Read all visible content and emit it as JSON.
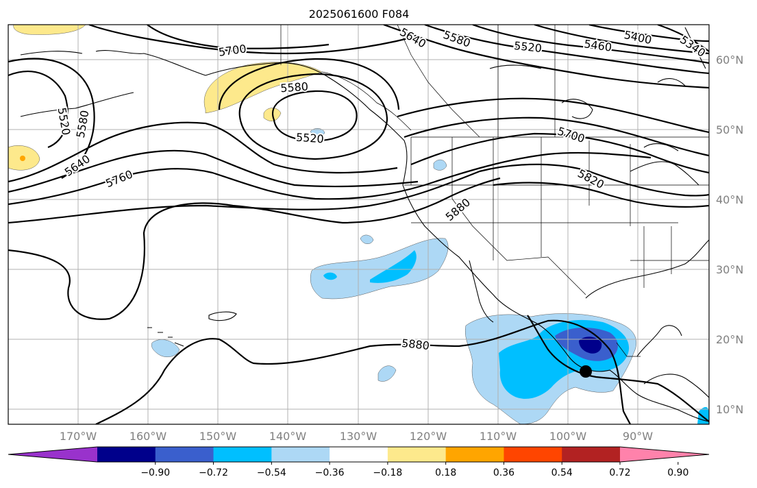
{
  "title": "2025061600 F084",
  "lat_labels": [
    "60°N",
    "50°N",
    "40°N",
    "30°N",
    "20°N",
    "10°N"
  ],
  "lon_labels": [
    "170°W",
    "160°W",
    "150°W",
    "140°W",
    "130°W",
    "120°W",
    "110°W",
    "100°W",
    "90°W"
  ],
  "contour_labels": [
    "5700",
    "5640",
    "5580",
    "5520",
    "5460",
    "5400",
    "5340",
    "5580",
    "5520",
    "5520",
    "5580",
    "5640",
    "5760",
    "5700",
    "5820",
    "5880",
    "5880"
  ],
  "colorbar": {
    "ticks": [
      "−0.90",
      "−0.72",
      "−0.54",
      "−0.36",
      "−0.18",
      "0.18",
      "0.36",
      "0.54",
      "0.72",
      "0.90"
    ],
    "colors": [
      "#9932cc",
      "#00008b",
      "#3a5fcd",
      "#00bfff",
      "#add8f5",
      "#ffffff",
      "#fde98c",
      "#ffa500",
      "#ff4500",
      "#b22222",
      "#ff82ab"
    ]
  },
  "chart_data": {
    "type": "heatmap",
    "title": "2025061600 F084",
    "contour_levels": [
      5340,
      5400,
      5460,
      5520,
      5580,
      5640,
      5700,
      5760,
      5820,
      5880
    ],
    "colorbar_levels": [
      -0.9,
      -0.72,
      -0.54,
      -0.36,
      -0.18,
      0.18,
      0.36,
      0.54,
      0.72,
      0.9
    ],
    "lon_range": [
      "180°W",
      "80°W"
    ],
    "lat_range": [
      "8°N",
      "65°N"
    ],
    "grid": true,
    "marker": {
      "lon": -97.5,
      "lat": 15.5
    }
  }
}
